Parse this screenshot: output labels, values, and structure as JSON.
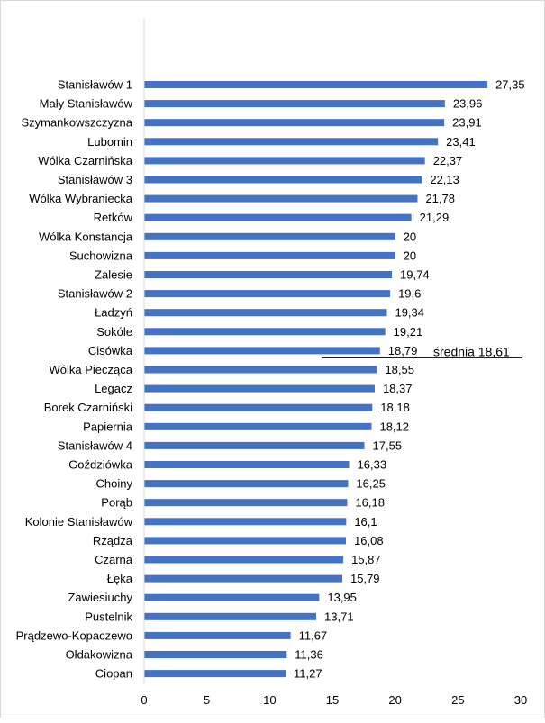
{
  "chart_data": {
    "type": "bar",
    "orientation": "horizontal",
    "categories": [
      "Stanisławów 1",
      "Mały Stanisławów",
      "Szymankowszczyzna",
      "Lubomin",
      "Wólka Czarnińska",
      "Stanisławów 3",
      "Wólka Wybraniecka",
      "Retków",
      "Wólka Konstancja",
      "Suchowizna",
      "Zalesie",
      "Stanisławów 2",
      "Ładzyń",
      "Sokóle",
      "Cisówka",
      "Wólka Piecząca",
      "Legacz",
      "Borek Czarniński",
      "Papiernia",
      "Stanisławów 4",
      "Goździówka",
      "Choiny",
      "Porąb",
      "Kolonie Stanisławów",
      "Rządza",
      "Czarna",
      "Łęka",
      "Zawiesiuchy",
      "Pustelnik",
      "Prądzewo-Kopaczewo",
      "Ołdakowizna",
      "Ciopan"
    ],
    "values": [
      27.35,
      23.96,
      23.91,
      23.41,
      22.37,
      22.13,
      21.78,
      21.29,
      20,
      20,
      19.74,
      19.6,
      19.34,
      19.21,
      18.79,
      18.55,
      18.37,
      18.18,
      18.12,
      17.55,
      16.33,
      16.25,
      16.18,
      16.1,
      16.08,
      15.87,
      15.79,
      13.95,
      13.71,
      11.67,
      11.36,
      11.27
    ],
    "value_labels": [
      "27,35",
      "23,96",
      "23,91",
      "23,41",
      "22,37",
      "22,13",
      "21,78",
      "21,29",
      "20",
      "20",
      "19,74",
      "19,6",
      "19,34",
      "19,21",
      "18,79",
      "18,55",
      "18,37",
      "18,18",
      "18,12",
      "17,55",
      "16,33",
      "16,25",
      "16,18",
      "16,1",
      "16,08",
      "15,87",
      "15,79",
      "13,95",
      "13,71",
      "11,67",
      "11,36",
      "11,27"
    ],
    "xlim": [
      0,
      30
    ],
    "xticks": [
      0,
      5,
      10,
      15,
      20,
      25,
      30
    ],
    "grid": false,
    "bar_color": "#4472c4",
    "annotation": {
      "text": "średnia 18,61",
      "value": 18.61
    },
    "title": "",
    "xlabel": "",
    "ylabel": ""
  }
}
